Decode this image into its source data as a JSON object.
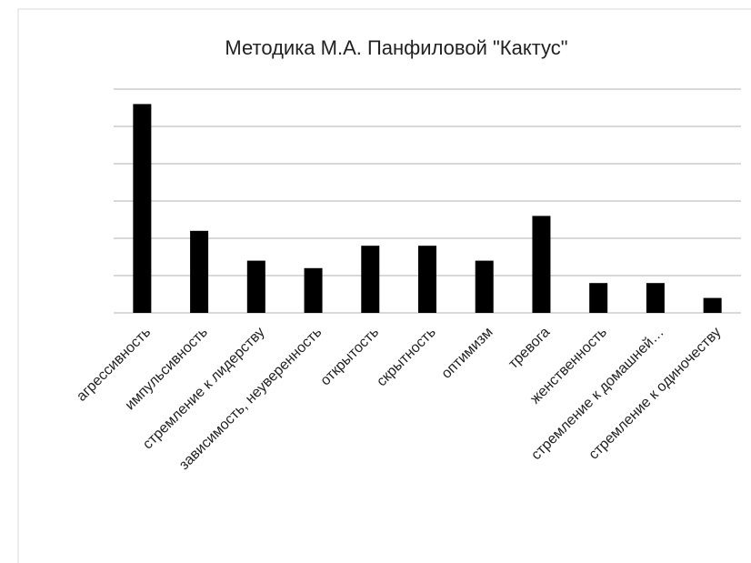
{
  "chart_data": {
    "type": "bar",
    "title": "Методика М.А. Панфиловой \"Кактус\"",
    "categories": [
      "агрессивность",
      "импульсивность",
      "стремление к лидерству",
      "зависимость, неуверенность",
      "открытость",
      "скрытность",
      "оптимизм",
      "тревога",
      "женственность",
      "стремление к домашней…",
      "стремление к одиночеству"
    ],
    "values": [
      5.6,
      2.2,
      1.4,
      1.2,
      1.8,
      1.8,
      1.4,
      2.6,
      0.8,
      0.8,
      0.4
    ],
    "color": "#000000",
    "ylim": [
      0,
      6
    ],
    "yticks": [
      0,
      1,
      2,
      3,
      4,
      5,
      6
    ],
    "grid": true
  }
}
